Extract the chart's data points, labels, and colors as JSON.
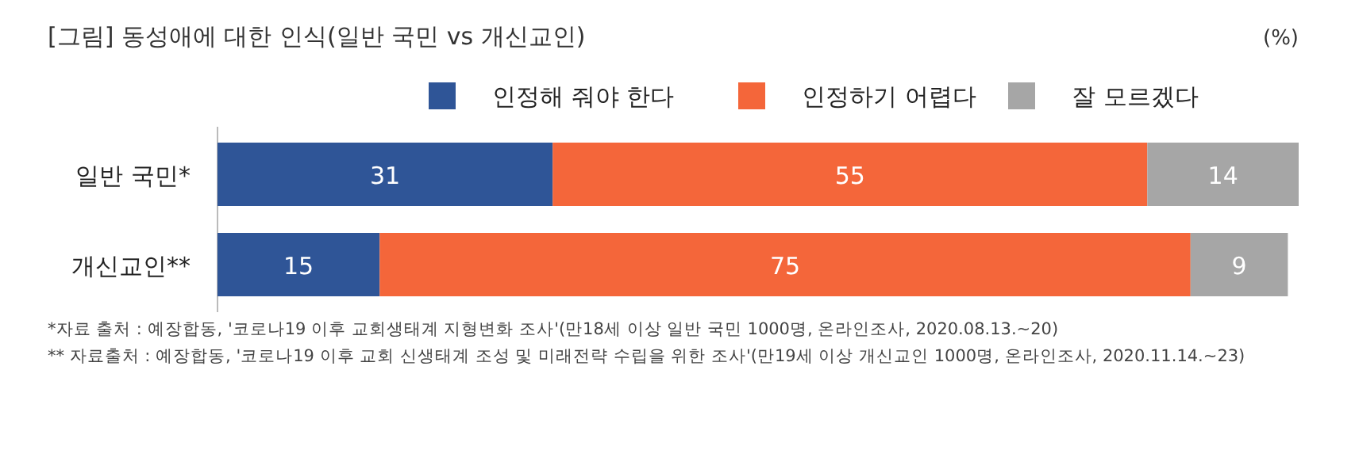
{
  "chart_data": {
    "type": "bar",
    "orientation": "horizontal",
    "stacked": true,
    "data_labels": true,
    "legend": "top",
    "title": "[그림] 동성애에 대한 인식(일반 국민 vs 개신교인)",
    "categories": [
      "일반 국민*",
      "개신교인**"
    ],
    "series": [
      {
        "name": "인정해 줘야 한다",
        "color": "#2f5597",
        "values": [
          31,
          15
        ]
      },
      {
        "name": "인정하기 어렵다",
        "color": "#f4663a",
        "values": [
          55,
          75
        ]
      },
      {
        "name": "잘 모르겠다",
        "color": "#a6a6a6",
        "values": [
          14,
          9
        ]
      }
    ],
    "annotations": [
      "(%)",
      "*자료 출처 : 예장합동, '코로나19 이후 교회생태계 지형변화 조사'(만18세 이상 일반 국민 1000명, 온라인조사, 2020.08.13.~20)",
      "** 자료출처 : 예장합동, '코로나19 이후 교회 신생태계 조성 및 미래전략 수립을 위한 조사'(만19세 이상 개신교인 1000명, 온라인조사, 2020.11.14.~23)"
    ]
  }
}
